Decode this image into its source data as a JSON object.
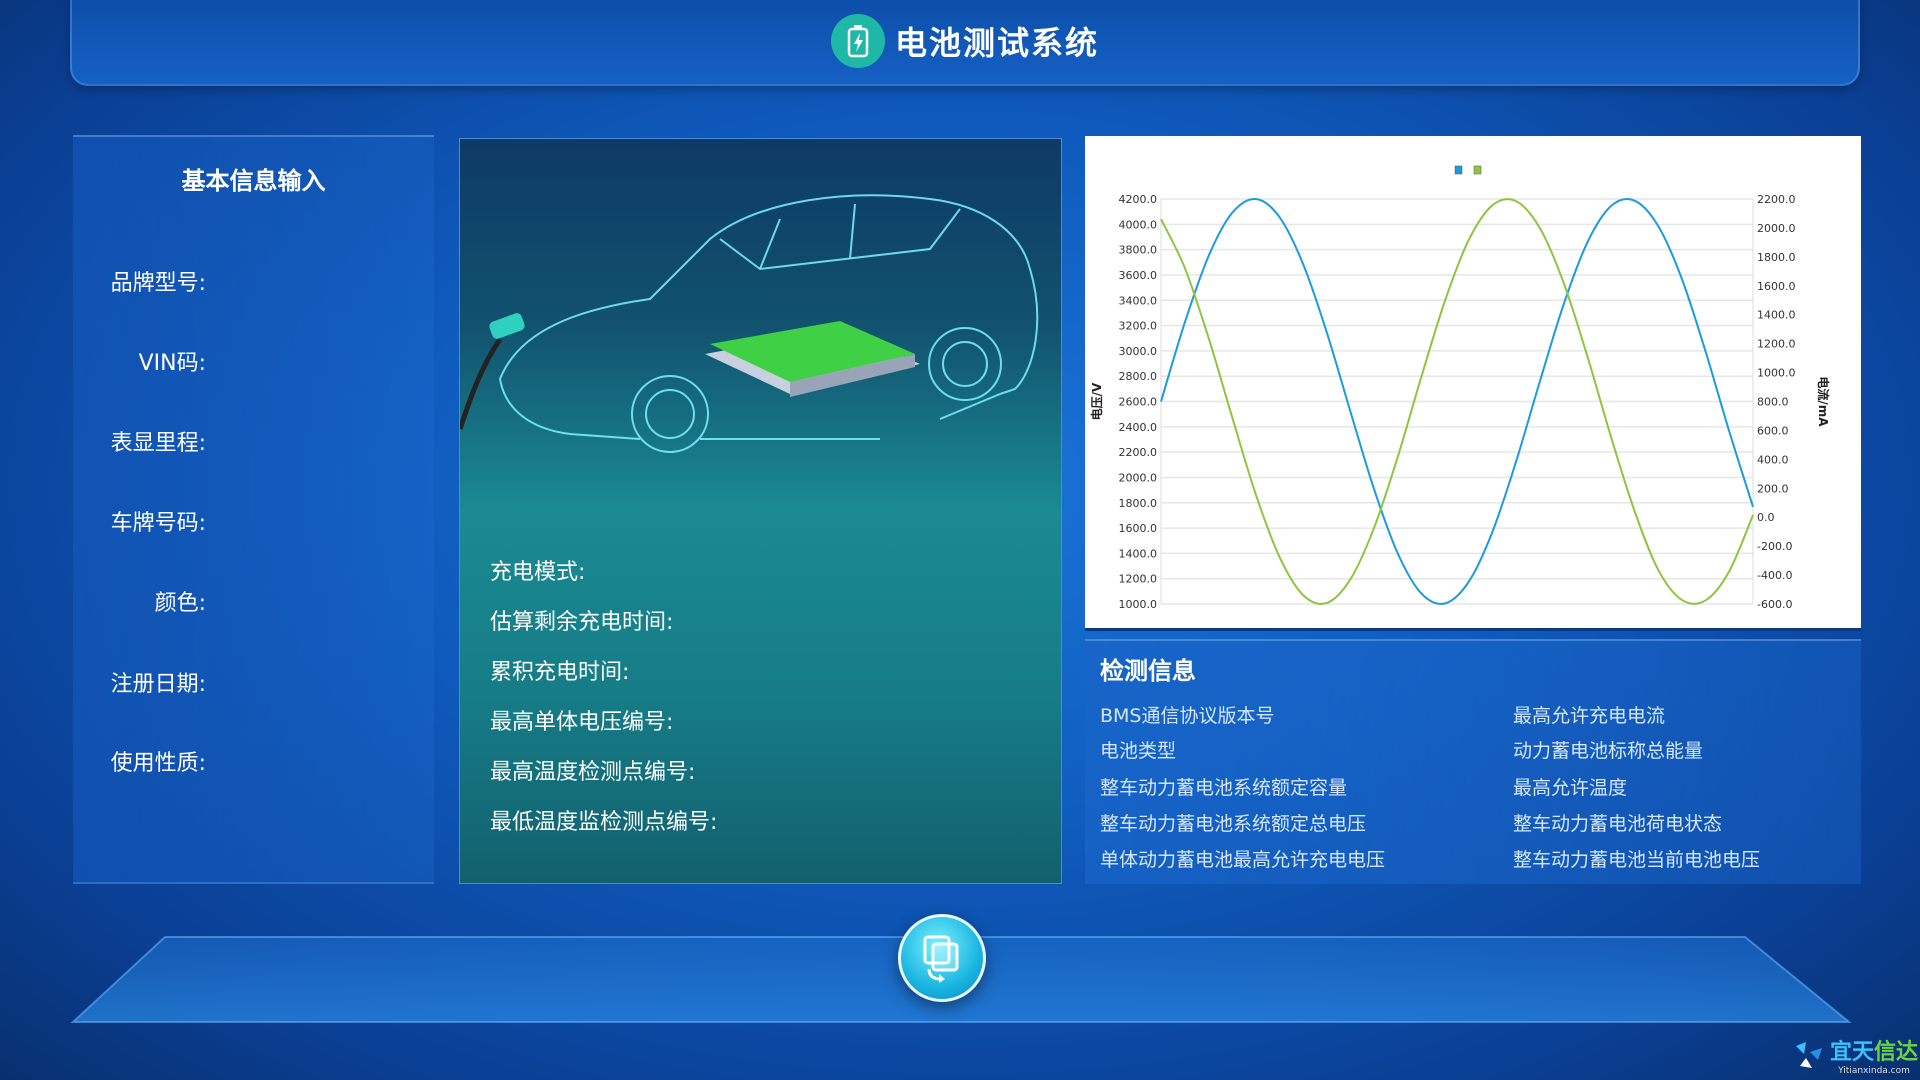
{
  "header": {
    "title": "电池测试系统",
    "icon": "battery-charge-icon"
  },
  "basic_info": {
    "title": "基本信息输入",
    "fields": [
      {
        "label": "品牌型号:"
      },
      {
        "label": "VIN码:"
      },
      {
        "label": "表显里程:"
      },
      {
        "label": "车牌号码:"
      },
      {
        "label": "颜色:"
      },
      {
        "label": "注册日期:"
      },
      {
        "label": "使用性质:"
      }
    ]
  },
  "charging": {
    "fields": [
      {
        "label": "充电模式:"
      },
      {
        "label": "估算剩余充电时间:"
      },
      {
        "label": "累积充电时间:"
      },
      {
        "label": "最高单体电压编号:"
      },
      {
        "label": "最高温度检测点编号:"
      },
      {
        "label": "最低温度监检测点编号:"
      }
    ]
  },
  "detection": {
    "title": "检测信息",
    "items": [
      "BMS通信协议版本号",
      "最高允许充电电流",
      "电池类型",
      "动力蓄电池标称总能量",
      "整车动力蓄电池系统额定容量",
      "最高允许温度",
      "整车动力蓄电池系统额定总电压",
      "整车动力蓄电池荷电状态",
      "单体动力蓄电池最高允许充电电压",
      "整车动力蓄电池当前电池电压"
    ]
  },
  "bottom_button": {
    "icon": "copy-refresh-icon"
  },
  "brand": {
    "name_a": "宜天",
    "name_b": "信达",
    "sub": "Yitianxinda.com"
  },
  "chart_data": {
    "type": "line",
    "ylabel": "电压/V",
    "y2label": "电流/mA",
    "ylim": [
      1000,
      4200
    ],
    "y2lim": [
      -600,
      2200
    ],
    "yticks": [
      "4200.0",
      "4000.0",
      "3800.0",
      "3600.0",
      "3400.0",
      "3200.0",
      "3000.0",
      "2800.0",
      "2600.0",
      "2400.0",
      "2200.0",
      "2000.0",
      "1800.0",
      "1600.0",
      "1400.0",
      "1200.0",
      "1000.0"
    ],
    "y2ticks": [
      "2200.0",
      "2000.0",
      "1800.0",
      "1600.0",
      "1400.0",
      "1200.0",
      "1000.0",
      "800.0",
      "600.0",
      "400.0",
      "200.0",
      "0.0",
      "-200.0",
      "-400.0",
      "-600.0"
    ],
    "grid": true,
    "legend": "top-center",
    "series": [
      {
        "color": "#1a9be0",
        "values": [
          2600,
          3221,
          3745,
          4089,
          4200,
          4058,
          3686,
          3147,
          2520,
          1906,
          1399,
          1082,
          1005,
          1177,
          1572,
          2129,
          2759,
          3365,
          3855,
          4144,
          4187,
          3986,
          3567,
          2993,
          2362,
          1768
        ]
      },
      {
        "color": "#8cc63f",
        "values": [
          4041,
          3658,
          3109,
          2480,
          1868,
          1374,
          1071,
          1008,
          1196,
          1603,
          2163,
          2798,
          3400,
          3878,
          4151,
          4182,
          3970,
          3540,
          2961,
          2323,
          1734,
          1269,
          1032,
          1029,
          1260,
          1703
        ]
      }
    ]
  }
}
